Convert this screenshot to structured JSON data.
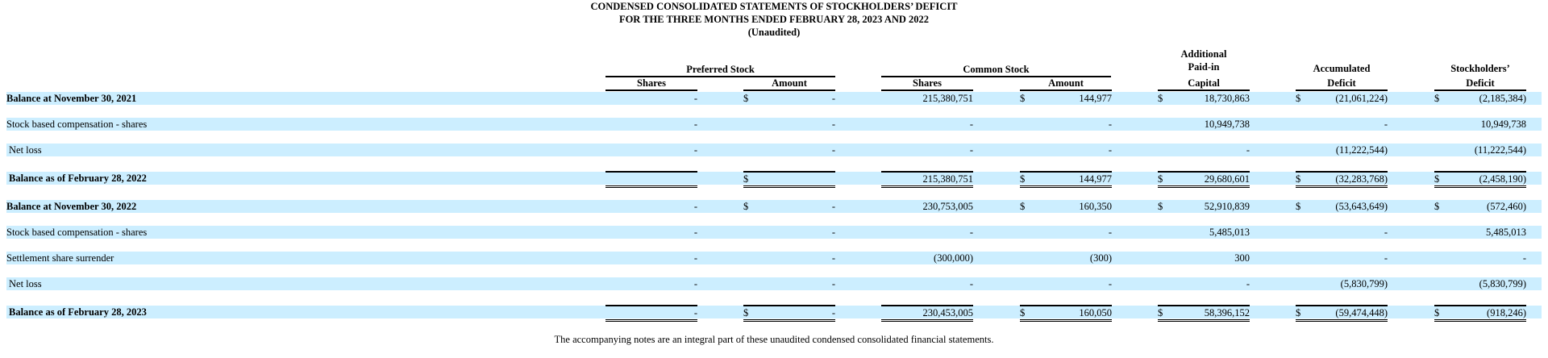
{
  "title_lines": [
    "CONDENSED CONSOLIDATED STATEMENTS OF STOCKHOLDERS’ DEFICIT",
    "FOR THE THREE MONTHS ENDED FEBRUARY 28, 2023 AND 2022",
    "(Unaudited)"
  ],
  "headers": {
    "preferred_stock": "Preferred Stock",
    "common_stock": "Common Stock",
    "apic_1": "Additional",
    "apic_2": "Paid-in",
    "apic_3": "Capital",
    "accumulated": "Accumulated",
    "accumulated_2": "Deficit",
    "stockholders": "Stockholders’",
    "stockholders_2": "Deficit",
    "pref_shares": "Shares",
    "pref_amount": "Amount",
    "common_shares": "Shares",
    "common_amount": "Amount"
  },
  "rows": [
    {
      "label": "Balance at November 30, 2021",
      "bold": true,
      "indent": false,
      "total": false,
      "values": [
        "-",
        "-",
        "215,380,751",
        "144,977",
        "18,730,863",
        "(21,061,224)",
        "(2,185,384)"
      ],
      "dollars": [
        "",
        "$",
        "",
        "$",
        "$",
        "$",
        "$"
      ]
    },
    {
      "label": "Stock based compensation - shares",
      "bold": false,
      "indent": false,
      "total": false,
      "values": [
        "-",
        "-",
        "-",
        "-",
        "10,949,738",
        "-",
        "10,949,738"
      ],
      "dollars": [
        "",
        "",
        "",
        "",
        "",
        "",
        ""
      ]
    },
    {
      "label": "Net loss",
      "bold": false,
      "indent": true,
      "total": false,
      "values": [
        "-",
        "-",
        "-",
        "-",
        "-",
        "(11,222,544)",
        "(11,222,544)"
      ],
      "dollars": [
        "",
        "",
        "",
        "",
        "",
        "",
        ""
      ]
    },
    {
      "label": "Balance as of February 28, 2022",
      "bold": true,
      "indent": true,
      "total": true,
      "values": [
        "",
        "",
        "215,380,751",
        "144,977",
        "29,680,601",
        "(32,283,768)",
        "(2,458,190)"
      ],
      "dollars": [
        "",
        "$",
        "",
        "$",
        "$",
        "$",
        "$"
      ]
    },
    {
      "label": "Balance at November 30, 2022",
      "bold": true,
      "indent": false,
      "total": false,
      "values": [
        "-",
        "-",
        "230,753,005",
        "160,350",
        "52,910,839",
        "(53,643,649)",
        "(572,460)"
      ],
      "dollars": [
        "",
        "$",
        "",
        "$",
        "$",
        "$",
        "$"
      ]
    },
    {
      "label": "Stock based compensation - shares",
      "bold": false,
      "indent": false,
      "total": false,
      "values": [
        "-",
        "-",
        "-",
        "-",
        "5,485,013",
        "-",
        "5,485,013"
      ],
      "dollars": [
        "",
        "",
        "",
        "",
        "",
        "",
        ""
      ]
    },
    {
      "label": "Settlement share surrender",
      "bold": false,
      "indent": false,
      "total": false,
      "values": [
        "-",
        "-",
        "(300,000)",
        "(300)",
        "300",
        "-",
        "-"
      ],
      "dollars": [
        "",
        "",
        "",
        "",
        "",
        "",
        ""
      ]
    },
    {
      "label": "Net loss",
      "bold": false,
      "indent": true,
      "total": false,
      "values": [
        "-",
        "-",
        "-",
        "-",
        "-",
        "(5,830,799)",
        "(5,830,799)"
      ],
      "dollars": [
        "",
        "",
        "",
        "",
        "",
        "",
        ""
      ]
    },
    {
      "label": "Balance as of February 28, 2023",
      "bold": true,
      "indent": true,
      "total": true,
      "values": [
        "-",
        "-",
        "230,453,005",
        "160,050",
        "58,396,152",
        "(59,474,448)",
        "(918,246)"
      ],
      "dollars": [
        "",
        "$",
        "",
        "$",
        "$",
        "$",
        "$"
      ]
    }
  ],
  "footer": "The accompanying notes are an integral part of these unaudited condensed consolidated financial statements."
}
